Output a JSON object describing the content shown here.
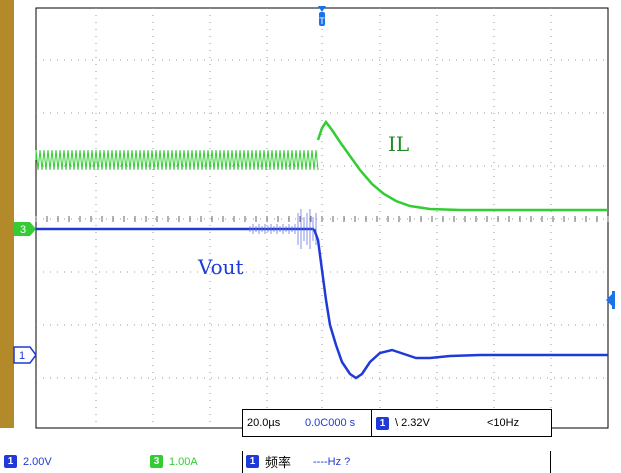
{
  "trigger_marker": "T",
  "trace_labels": {
    "il": "IL",
    "vout": "Vout"
  },
  "channel_markers": {
    "ch3": "3",
    "ch1": "1"
  },
  "timebase": {
    "time_div": "20.0µs",
    "delay": "0.0C000 s",
    "trigger_channel": "1",
    "trigger_level": "\\ 2.32V",
    "trigger_freq": "<10Hz"
  },
  "status": {
    "ch1_badge": "1",
    "ch1_scale": "2.00V",
    "ch3_badge": "3",
    "ch3_scale": "1.00A",
    "freq_badge": "1",
    "freq_label": "频率",
    "freq_value": "----Hz  ?"
  },
  "colors": {
    "ch1": "#1f3ad6",
    "ch3": "#33cc33",
    "trigger": "#1a73e8",
    "bezel": "#b28a2a",
    "grid": "#9a9a9a"
  },
  "icons": {
    "trigger_marker": "trigger-arrow-icon",
    "trigger_level_marker": "trigger-level-arrow-icon"
  }
}
